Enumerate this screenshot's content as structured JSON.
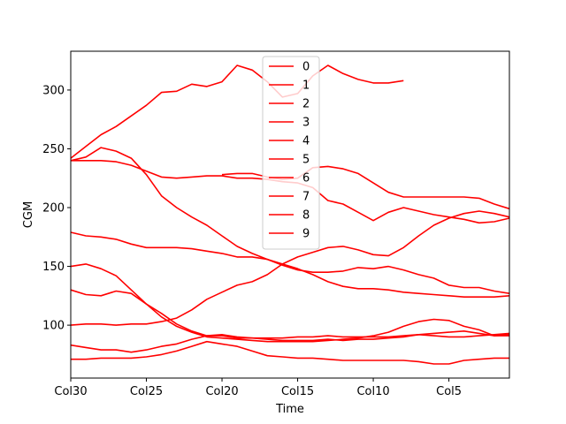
{
  "chart_data": {
    "type": "line",
    "xlabel": "Time",
    "ylabel": "CGM",
    "x_ticks": [
      "Col30",
      "Col25",
      "Col20",
      "Col15",
      "Col10",
      "Col5"
    ],
    "x_tick_positions": [
      0,
      5,
      10,
      15,
      20,
      25
    ],
    "x_range": [
      0,
      29
    ],
    "ylim": [
      55,
      333
    ],
    "y_ticks": [
      100,
      150,
      200,
      250,
      300
    ],
    "grid": false,
    "legend_placement": "upper center",
    "line_color": "#ff0000",
    "series": [
      {
        "name": "0",
        "values": [
          130,
          126,
          125,
          129,
          127,
          118,
          110,
          101,
          95,
          91,
          91,
          89,
          89,
          89,
          89,
          90,
          90,
          91,
          90,
          90,
          90,
          90,
          91,
          92,
          91,
          90,
          90,
          91,
          92,
          93
        ]
      },
      {
        "name": "1",
        "values": [
          179,
          176,
          175,
          173,
          169,
          166,
          166,
          166,
          165,
          163,
          161,
          158,
          158,
          156,
          152,
          148,
          143,
          137,
          133,
          131,
          131,
          130,
          128,
          127,
          126,
          125,
          124,
          124,
          124,
          125
        ]
      },
      {
        "name": "2",
        "values": [
          150,
          152,
          148,
          142,
          130,
          118,
          107,
          99,
          94,
          90,
          89,
          88,
          87,
          86,
          86,
          86,
          86,
          87,
          88,
          89,
          91,
          94,
          99,
          103,
          105,
          104,
          99,
          96,
          91,
          91
        ]
      },
      {
        "name": "3",
        "values": [
          100,
          101,
          101,
          100,
          101,
          101,
          103,
          106,
          113,
          122,
          128,
          134,
          137,
          143,
          152,
          158,
          162,
          166,
          167,
          164,
          160,
          159,
          166,
          176,
          185,
          191,
          195,
          197,
          195,
          192
        ]
      },
      {
        "name": "4",
        "values": [
          83,
          81,
          79,
          79,
          77,
          79,
          82,
          84,
          88,
          91,
          92,
          90,
          89,
          88,
          87,
          87,
          87,
          88,
          87,
          88,
          88,
          89,
          90,
          92,
          93,
          94,
          95,
          93,
          91,
          92
        ]
      },
      {
        "name": "5",
        "values": [
          240,
          243,
          251,
          248,
          242,
          228,
          210,
          200,
          192,
          185,
          176,
          167,
          161,
          156,
          151,
          147,
          145,
          145,
          146,
          149,
          148,
          150,
          147,
          143,
          140,
          134,
          132,
          132,
          129,
          127
        ]
      },
      {
        "name": "6",
        "values": [
          71,
          71,
          72,
          72,
          72,
          73,
          75,
          78,
          82,
          86,
          84,
          82,
          78,
          74,
          73,
          72,
          72,
          71,
          70,
          70,
          70,
          70,
          70,
          69,
          67,
          67,
          70,
          71,
          72,
          72
        ]
      },
      {
        "name": "7",
        "values": [
          240,
          240,
          240,
          239,
          236,
          231,
          226,
          225,
          226,
          227,
          227,
          225,
          225,
          224,
          222,
          221,
          217,
          206,
          203,
          196,
          189,
          196,
          200,
          197,
          194,
          192,
          190,
          187,
          188,
          191
        ]
      },
      {
        "name": "8",
        "values": [
          242,
          252,
          262,
          269,
          278,
          287,
          298,
          299,
          305,
          303,
          307,
          321,
          317,
          307,
          294,
          297,
          312,
          321,
          314,
          309,
          306,
          306,
          308
        ]
      },
      {
        "name": "9",
        "values": [
          null,
          null,
          null,
          null,
          null,
          null,
          null,
          null,
          null,
          null,
          228,
          229,
          229,
          226,
          224,
          225,
          234,
          235,
          233,
          229,
          221,
          213,
          209,
          209,
          209,
          209,
          209,
          208,
          203,
          199
        ]
      }
    ]
  }
}
